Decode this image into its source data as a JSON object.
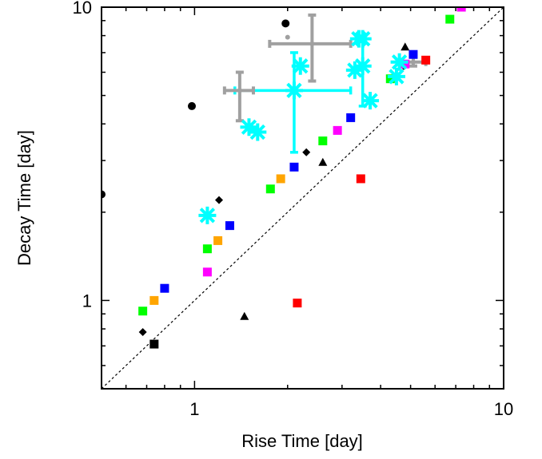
{
  "chart_data": {
    "type": "scatter",
    "xlabel": "Rise Time [day]",
    "ylabel": "Decay Time [day]",
    "xscale": "log",
    "yscale": "log",
    "xlim": [
      0.5,
      10
    ],
    "ylim": [
      0.5,
      10
    ],
    "xticks": [
      {
        "value": 1,
        "label": "1"
      },
      {
        "value": 10,
        "label": "10"
      }
    ],
    "yticks": [
      {
        "value": 1,
        "label": "1"
      },
      {
        "value": 10,
        "label": "10"
      }
    ],
    "reference_line": {
      "style": "dotted",
      "description": "y = x"
    },
    "grid": false,
    "legend": "none",
    "colors": {
      "black": "#000000",
      "green": "#00ff00",
      "orange": "#ffa500",
      "blue": "#0000ff",
      "magenta": "#ff00ff",
      "red": "#ff0000",
      "cyan": "#00ffff",
      "gray": "#a0a0a0"
    },
    "series": [
      {
        "marker": "circle",
        "color": "black",
        "points": [
          [
            0.5,
            2.3
          ],
          [
            0.98,
            4.6
          ],
          [
            1.97,
            8.8
          ]
        ]
      },
      {
        "marker": "diamond",
        "color": "black",
        "points": [
          [
            0.68,
            0.78
          ],
          [
            1.2,
            2.2
          ],
          [
            2.3,
            3.2
          ],
          [
            4.75,
            6.3
          ]
        ]
      },
      {
        "marker": "triangle",
        "color": "black",
        "points": [
          [
            1.45,
            0.88
          ],
          [
            2.6,
            2.95
          ],
          [
            4.8,
            7.3
          ]
        ]
      },
      {
        "marker": "square",
        "color": "black",
        "points": [
          [
            0.74,
            0.71
          ]
        ]
      },
      {
        "marker": "square",
        "color": "green",
        "points": [
          [
            0.68,
            0.92
          ],
          [
            1.1,
            1.5
          ],
          [
            1.76,
            2.4
          ],
          [
            2.6,
            3.5
          ],
          [
            4.3,
            5.7
          ],
          [
            6.7,
            9.1
          ]
        ]
      },
      {
        "marker": "square",
        "color": "orange",
        "points": [
          [
            0.74,
            1.0
          ],
          [
            1.19,
            1.6
          ],
          [
            1.9,
            2.6
          ]
        ]
      },
      {
        "marker": "square",
        "color": "blue",
        "points": [
          [
            0.8,
            1.1
          ],
          [
            1.3,
            1.8
          ],
          [
            2.1,
            2.85
          ],
          [
            3.2,
            4.2
          ],
          [
            5.1,
            6.9
          ]
        ]
      },
      {
        "marker": "square",
        "color": "magenta",
        "points": [
          [
            1.1,
            1.25
          ],
          [
            2.9,
            3.8
          ],
          [
            4.8,
            6.4
          ],
          [
            7.3,
            10.0
          ]
        ]
      },
      {
        "marker": "square",
        "color": "red",
        "points": [
          [
            2.15,
            0.98
          ],
          [
            3.45,
            2.6
          ],
          [
            5.6,
            6.6
          ]
        ]
      },
      {
        "marker": "asterisk",
        "color": "cyan",
        "points": [
          [
            1.1,
            1.95
          ],
          [
            1.5,
            3.9
          ],
          [
            1.6,
            3.75
          ],
          [
            2.1,
            5.2
          ],
          [
            2.2,
            6.3
          ],
          [
            3.3,
            6.1
          ],
          [
            3.5,
            6.3
          ],
          [
            3.4,
            7.8
          ],
          [
            3.5,
            7.8
          ],
          [
            3.7,
            4.8
          ],
          [
            4.5,
            5.8
          ],
          [
            4.6,
            6.5
          ]
        ]
      },
      {
        "marker": "cross",
        "color": "gray",
        "points": [
          [
            1.4,
            5.2
          ],
          [
            2.0,
            7.9
          ],
          [
            2.4,
            7.5
          ],
          [
            5.1,
            6.5
          ]
        ]
      }
    ],
    "error_bars": [
      {
        "color": "cyan",
        "x": 2.1,
        "y": 5.2,
        "xerr": [
          1.35,
          3.2
        ],
        "yerr": [
          3.2,
          7.0
        ]
      },
      {
        "color": "cyan",
        "x": 3.5,
        "y": 6.3,
        "xerr": [
          3.45,
          3.55
        ],
        "yerr": [
          4.6,
          7.8
        ]
      },
      {
        "color": "gray",
        "x": 1.4,
        "y": 5.2,
        "xerr": [
          1.25,
          1.55
        ],
        "yerr": [
          4.1,
          6.0
        ]
      },
      {
        "color": "gray",
        "x": 2.4,
        "y": 7.5,
        "xerr": [
          1.75,
          3.2
        ],
        "yerr": [
          5.6,
          9.4
        ]
      },
      {
        "color": "gray",
        "x": 5.1,
        "y": 6.5,
        "xerr": [
          4.7,
          5.6
        ],
        "yerr": [
          6.3,
          6.8
        ]
      }
    ]
  }
}
